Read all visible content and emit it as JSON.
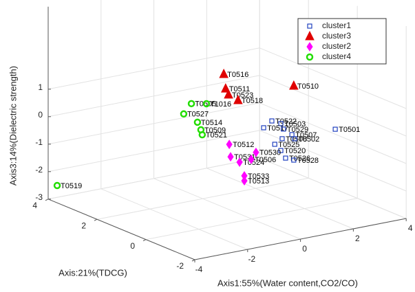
{
  "chart_data": {
    "type": "scatter3d",
    "xlabel": "Axis1:55%(Water content,CO2/CO)",
    "ylabel": "Axis:21%(TDCG)",
    "zlabel": "Axis3:14%(Dielectric strength)",
    "xlim": [
      -4,
      4
    ],
    "xticks": [
      -4,
      -2,
      0,
      2,
      4
    ],
    "ylim": [
      -2,
      4
    ],
    "yticks": [
      -2,
      0,
      2,
      4
    ],
    "zlim": [
      -3,
      4
    ],
    "zticks": [
      -3,
      -2,
      -1,
      0,
      1
    ],
    "grid": true,
    "legend_position": "upper right",
    "series": [
      {
        "name": "cluster1",
        "color": "#1f3fbf",
        "marker": "square",
        "labels": [
          "T0522",
          "T0503",
          "T0517",
          "T0529",
          "T0507",
          "T0501",
          "T0508",
          "T0502",
          "T0525",
          "T0520",
          "T0526",
          "T0528"
        ],
        "x": [
          1.69,
          2.03,
          1.38,
          2.13,
          2.45,
          2.24,
          2.08,
          2.55,
          1.8,
          2.03,
          2.21,
          2.52
        ],
        "y": [
          1,
          1,
          1,
          1,
          1,
          -1,
          1,
          1,
          1,
          1,
          1,
          1
        ],
        "z": [
          -0.12,
          -0.28,
          -0.31,
          -0.5,
          -0.76,
          0.21,
          -0.84,
          -0.93,
          -0.99,
          -1.26,
          -1.57,
          -1.7
        ]
      },
      {
        "name": "cluster3",
        "color": "#e00000",
        "marker": "triangle",
        "labels": [
          "T0516",
          "T0511",
          "T0523",
          "T0518",
          "T0510"
        ],
        "x": [
          1.72,
          1.79,
          1.9,
          2.26,
          2.52
        ],
        "y": [
          3,
          3,
          3,
          3,
          1
        ],
        "z": [
          0.84,
          0.3,
          0.06,
          -0.21,
          1.0
        ]
      },
      {
        "name": "cluster2",
        "color": "#ff00ff",
        "marker": "diamond",
        "labels": [
          "T0512",
          "T0530",
          "T0531",
          "T0524",
          "T0506",
          "T0533",
          "T0513"
        ],
        "x": [
          -1.77,
          -0.76,
          -1.72,
          -1.38,
          -0.94,
          -1.2,
          -1.2
        ],
        "y": [
          -1,
          -1,
          -1,
          -1,
          -1,
          -1,
          -1
        ],
        "z": [
          0.41,
          -0.07,
          -0.05,
          -0.31,
          -0.29,
          -0.84,
          -1.02
        ]
      },
      {
        "name": "cluster4",
        "color": "#22dd00",
        "marker": "circle",
        "labels": [
          "T0519",
          "T0505",
          "T1016",
          "T0527",
          "T0514",
          "T0509",
          "T0521"
        ],
        "x": [
          -3.66,
          -0.43,
          0.14,
          -0.72,
          -0.2,
          -0.07,
          -0.02
        ],
        "y": [
          4,
          2,
          2,
          2,
          2,
          2,
          2
        ],
        "z": [
          -2.57,
          0.54,
          0.43,
          0.22,
          -0.18,
          -0.48,
          -0.67
        ]
      }
    ]
  }
}
